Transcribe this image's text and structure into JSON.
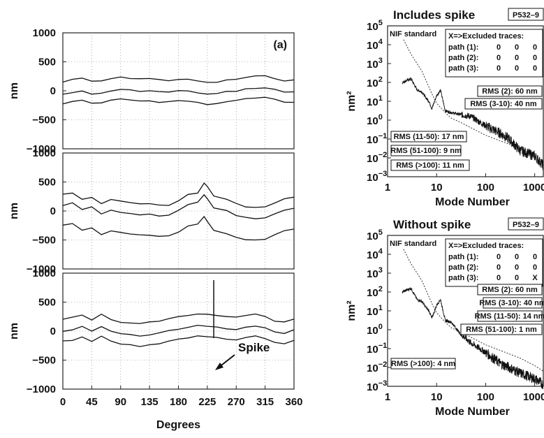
{
  "chart_data": [
    {
      "type": "line",
      "panel": "left-top",
      "label": "(a)",
      "xlabel": "",
      "ylabel": "nm",
      "xlim": [
        0,
        360
      ],
      "ylim": [
        -1000,
        1000
      ],
      "yticks": [
        "1000",
        "500",
        "0",
        "−500",
        "−1000"
      ],
      "x": [
        0,
        15,
        30,
        45,
        60,
        75,
        90,
        105,
        120,
        135,
        150,
        165,
        180,
        195,
        210,
        225,
        240,
        255,
        270,
        285,
        300,
        315,
        330,
        345,
        360
      ],
      "series": [
        {
          "values": [
            150,
            200,
            210,
            160,
            170,
            210,
            230,
            220,
            210,
            210,
            190,
            180,
            200,
            190,
            170,
            140,
            150,
            180,
            200,
            230,
            250,
            250,
            220,
            180,
            180
          ]
        },
        {
          "values": [
            -60,
            -20,
            -10,
            -60,
            -40,
            0,
            20,
            10,
            0,
            0,
            -20,
            -20,
            0,
            -10,
            -30,
            -60,
            -50,
            -20,
            0,
            30,
            50,
            50,
            20,
            -20,
            -20
          ]
        },
        {
          "values": [
            -220,
            -180,
            -170,
            -220,
            -210,
            -170,
            -150,
            -160,
            -170,
            -170,
            -190,
            -190,
            -170,
            -180,
            -200,
            -230,
            -220,
            -190,
            -170,
            -140,
            -120,
            -120,
            -150,
            -190,
            -190
          ]
        }
      ],
      "grid": true
    },
    {
      "type": "line",
      "panel": "left-middle",
      "xlabel": "",
      "ylabel": "nm",
      "xlim": [
        0,
        360
      ],
      "ylim": [
        -1000,
        1000
      ],
      "yticks": [
        "1000",
        "500",
        "0",
        "−500",
        "−1000"
      ],
      "x": [
        0,
        15,
        30,
        45,
        60,
        75,
        90,
        105,
        120,
        135,
        150,
        165,
        180,
        195,
        210,
        220,
        225,
        235,
        255,
        270,
        285,
        300,
        315,
        330,
        345,
        360
      ],
      "series": [
        {
          "values": [
            300,
            320,
            210,
            240,
            130,
            200,
            160,
            140,
            120,
            120,
            100,
            100,
            180,
            280,
            320,
            470,
            420,
            260,
            200,
            120,
            80,
            60,
            80,
            140,
            210,
            230
          ]
        },
        {
          "values": [
            100,
            150,
            20,
            60,
            -60,
            20,
            -20,
            -40,
            -60,
            -60,
            -80,
            -80,
            0,
            100,
            140,
            280,
            220,
            60,
            0,
            -80,
            -120,
            -140,
            -120,
            -60,
            10,
            40
          ]
        },
        {
          "values": [
            -250,
            -210,
            -340,
            -300,
            -420,
            -340,
            -380,
            -400,
            -420,
            -420,
            -440,
            -440,
            -360,
            -260,
            -220,
            -100,
            -170,
            -330,
            -390,
            -460,
            -500,
            -510,
            -480,
            -420,
            -350,
            -320
          ]
        }
      ],
      "grid": true
    },
    {
      "type": "line",
      "panel": "left-bottom",
      "xlabel": "Degrees",
      "ylabel": "nm",
      "xlim": [
        0,
        360
      ],
      "ylim": [
        -1000,
        1000
      ],
      "xticks": [
        "0",
        "45",
        "90",
        "135",
        "180",
        "225",
        "270",
        "315",
        "360"
      ],
      "yticks": [
        "1000",
        "500",
        "0",
        "−500",
        "−1000"
      ],
      "x": [
        0,
        15,
        30,
        45,
        60,
        75,
        90,
        105,
        120,
        135,
        150,
        165,
        180,
        195,
        210,
        225,
        240,
        255,
        270,
        285,
        300,
        315,
        330,
        345,
        360
      ],
      "series": [
        {
          "values": [
            200,
            230,
            280,
            190,
            290,
            200,
            160,
            140,
            130,
            150,
            180,
            220,
            250,
            280,
            300,
            290,
            280,
            260,
            240,
            270,
            300,
            260,
            180,
            160,
            220
          ]
        },
        {
          "values": [
            0,
            30,
            80,
            -10,
            90,
            0,
            -40,
            -60,
            -80,
            -60,
            -30,
            10,
            40,
            70,
            90,
            80,
            70,
            50,
            30,
            60,
            90,
            50,
            -20,
            -40,
            20
          ]
        },
        {
          "values": [
            -180,
            -150,
            -100,
            -190,
            -90,
            -180,
            -220,
            -240,
            -260,
            -240,
            -210,
            -170,
            -140,
            -110,
            -90,
            -100,
            -110,
            -130,
            -150,
            -120,
            -90,
            -130,
            -200,
            -220,
            -160
          ]
        }
      ],
      "spike": {
        "x": 235,
        "y": [
          -120,
          880
        ]
      },
      "annotation": "Spike",
      "grid": true
    },
    {
      "type": "line",
      "panel": "right-top",
      "title": "Includes spike",
      "tag": "P532–9",
      "xlabel": "Mode Number",
      "ylabel": "nm²",
      "xscale": "log",
      "yscale": "log",
      "xlim": [
        1,
        1500
      ],
      "ylim_exp": [
        -3,
        5
      ],
      "xticks": [
        "1",
        "10",
        "100",
        "1000"
      ],
      "series": [
        {
          "kind": "measured",
          "x": [
            2,
            3,
            4,
            5,
            6,
            7,
            8,
            10,
            12,
            15,
            20,
            30,
            50,
            100,
            200,
            300,
            500,
            1000,
            1500
          ],
          "y_exp": [
            2,
            2.2,
            1.6,
            1.5,
            1.2,
            1.0,
            0.6,
            1.3,
            1.6,
            0.5,
            0.4,
            0.3,
            0.2,
            -0.3,
            -0.7,
            -1.0,
            -1.6,
            -1.9,
            -2.4
          ]
        },
        {
          "kind": "NIF standard",
          "x": [
            2,
            3,
            5,
            8,
            10,
            15,
            20,
            30,
            50,
            100,
            200,
            500,
            1000,
            1500
          ],
          "y_exp": [
            4.4,
            3.5,
            2.6,
            1.4,
            0.9,
            0.4,
            0.1,
            -0.1,
            -0.4,
            -0.8,
            -1.1,
            -1.5,
            -1.9,
            -2.2
          ]
        }
      ],
      "legend_label": "NIF standard",
      "excluded": {
        "title": "X=>Excluded traces:",
        "rows": [
          {
            "label": "path (1):",
            "v": [
              "0",
              "0",
              "0"
            ]
          },
          {
            "label": "path (2):",
            "v": [
              "0",
              "0",
              "0"
            ]
          },
          {
            "label": "path (3):",
            "v": [
              "0",
              "0",
              "0"
            ]
          }
        ]
      },
      "rms": [
        "RMS (2): 60 nm",
        "RMS (3-10): 40 nm",
        "RMS (11-50): 17 nm",
        "RMS (51-100): 9 nm",
        "RMS (>100): 11 nm"
      ]
    },
    {
      "type": "line",
      "panel": "right-bottom",
      "title": "Without spike",
      "tag": "P532–9",
      "xlabel": "Mode Number",
      "ylabel": "nm²",
      "xscale": "log",
      "yscale": "log",
      "xlim": [
        1,
        1500
      ],
      "ylim_exp": [
        -3,
        5
      ],
      "xticks": [
        "1",
        "10",
        "100",
        "1000"
      ],
      "series": [
        {
          "kind": "measured",
          "x": [
            2,
            3,
            4,
            5,
            6,
            7,
            8,
            10,
            12,
            15,
            20,
            30,
            50,
            100,
            200,
            300,
            500,
            1000,
            1500
          ],
          "y_exp": [
            2,
            2.2,
            1.6,
            1.5,
            1.2,
            1.0,
            0.6,
            1.3,
            1.6,
            0.5,
            0.4,
            -0.2,
            -0.7,
            -1.2,
            -1.8,
            -2.0,
            -2.3,
            -2.6,
            -2.9
          ]
        },
        {
          "kind": "NIF standard",
          "x": [
            2,
            3,
            5,
            8,
            10,
            15,
            20,
            30,
            50,
            100,
            200,
            500,
            1000,
            1500
          ],
          "y_exp": [
            4.4,
            3.5,
            2.6,
            1.4,
            0.9,
            0.4,
            0.1,
            -0.1,
            -0.4,
            -0.8,
            -1.1,
            -1.5,
            -1.9,
            -2.2
          ]
        }
      ],
      "legend_label": "NIF standard",
      "excluded": {
        "title": "X=>Excluded traces:",
        "rows": [
          {
            "label": "path (1):",
            "v": [
              "0",
              "0",
              "0"
            ]
          },
          {
            "label": "path (2):",
            "v": [
              "0",
              "0",
              "0"
            ]
          },
          {
            "label": "path (3):",
            "v": [
              "0",
              "0",
              "X"
            ]
          }
        ]
      },
      "rms": [
        "RMS (2): 60 nm",
        "RMS (3-10): 40 nm",
        "RMS (11-50): 14 nm",
        "RMS (51-100): 1 nm",
        "RMS (>100): 4 nm"
      ]
    }
  ]
}
